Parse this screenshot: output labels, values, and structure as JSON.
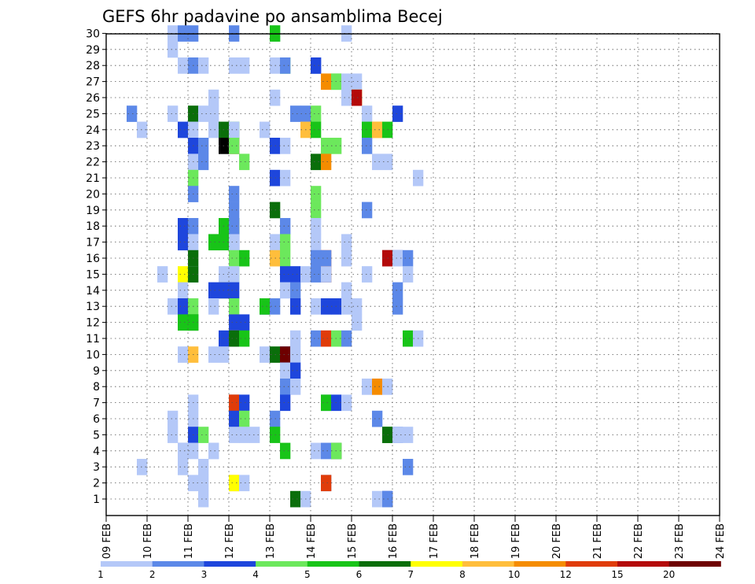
{
  "chart_data": {
    "type": "heatmap",
    "title": "GEFS 6hr padavine po ansamblima Becej",
    "xlabel": "",
    "ylabel": "",
    "y_ticks": [
      1,
      2,
      3,
      4,
      5,
      6,
      7,
      8,
      9,
      10,
      11,
      12,
      13,
      14,
      15,
      16,
      17,
      18,
      19,
      20,
      21,
      22,
      23,
      24,
      25,
      26,
      27,
      28,
      29,
      30
    ],
    "x_ticks": [
      "09 FEB",
      "10 FEB",
      "11 FEB",
      "12 FEB",
      "13 FEB",
      "14 FEB",
      "15 FEB",
      "16 FEB",
      "17 FEB",
      "18 FEB",
      "19 FEB",
      "20 FEB",
      "21 FEB",
      "22 FEB",
      "23 FEB",
      "24 FEB"
    ],
    "x_unit": "6-hour step from 09 FEB 00Z",
    "legend": {
      "labels": [
        "1",
        "2",
        "3",
        "4",
        "5",
        "6",
        "7",
        "8",
        "10",
        "12",
        "15",
        "20"
      ],
      "colors": [
        "#b4c8f8",
        "#5c88e8",
        "#1e46dc",
        "#6ce85c",
        "#18c418",
        "#0a6e0a",
        "#ffff00",
        "#ffbe3c",
        "#f58c00",
        "#e03c0a",
        "#b40a0a",
        "#6e0000"
      ]
    },
    "cells": [
      [
        30,
        6,
        1
      ],
      [
        30,
        7,
        2
      ],
      [
        30,
        8,
        2
      ],
      [
        30,
        12,
        2
      ],
      [
        30,
        16,
        1
      ],
      [
        30,
        16,
        5
      ],
      [
        30,
        23,
        1
      ],
      [
        29,
        6,
        1
      ],
      [
        28,
        7,
        1
      ],
      [
        28,
        8,
        2
      ],
      [
        28,
        9,
        1
      ],
      [
        28,
        12,
        1
      ],
      [
        28,
        13,
        1
      ],
      [
        28,
        16,
        1
      ],
      [
        28,
        17,
        4
      ],
      [
        28,
        17,
        2
      ],
      [
        28,
        20,
        2
      ],
      [
        28,
        20,
        3
      ],
      [
        27,
        21,
        9
      ],
      [
        27,
        22,
        4
      ],
      [
        27,
        22,
        4
      ],
      [
        27,
        23,
        1
      ],
      [
        27,
        24,
        1
      ],
      [
        26,
        10,
        1
      ],
      [
        26,
        16,
        1
      ],
      [
        26,
        23,
        1
      ],
      [
        26,
        24,
        7
      ],
      [
        26,
        24,
        11
      ],
      [
        25,
        2,
        2
      ],
      [
        25,
        6,
        1
      ],
      [
        25,
        8,
        6
      ],
      [
        25,
        9,
        1
      ],
      [
        25,
        10,
        1
      ],
      [
        25,
        18,
        2
      ],
      [
        25,
        19,
        2
      ],
      [
        25,
        20,
        4
      ],
      [
        25,
        25,
        1
      ],
      [
        25,
        28,
        3
      ],
      [
        24,
        3,
        1
      ],
      [
        24,
        7,
        3
      ],
      [
        24,
        8,
        1
      ],
      [
        24,
        10,
        1
      ],
      [
        24,
        11,
        6
      ],
      [
        24,
        12,
        5
      ],
      [
        24,
        12,
        1
      ],
      [
        24,
        15,
        1
      ],
      [
        24,
        19,
        8
      ],
      [
        24,
        20,
        5
      ],
      [
        24,
        25,
        1
      ],
      [
        24,
        25,
        5
      ],
      [
        24,
        26,
        8
      ],
      [
        24,
        26,
        8
      ],
      [
        24,
        27,
        5
      ],
      [
        23,
        8,
        3
      ],
      [
        23,
        9,
        2
      ],
      [
        23,
        11,
        13
      ],
      [
        23,
        12,
        11
      ],
      [
        23,
        12,
        4
      ],
      [
        23,
        16,
        3
      ],
      [
        23,
        17,
        1
      ],
      [
        23,
        21,
        4
      ],
      [
        23,
        22,
        4
      ],
      [
        23,
        25,
        2
      ],
      [
        22,
        8,
        1
      ],
      [
        22,
        9,
        2
      ],
      [
        22,
        13,
        4
      ],
      [
        22,
        20,
        6
      ],
      [
        22,
        21,
        9
      ],
      [
        22,
        26,
        1
      ],
      [
        22,
        27,
        1
      ],
      [
        21,
        8,
        4
      ],
      [
        21,
        16,
        3
      ],
      [
        21,
        17,
        1
      ],
      [
        21,
        30,
        1
      ],
      [
        20,
        8,
        2
      ],
      [
        20,
        12,
        2
      ],
      [
        20,
        20,
        4
      ],
      [
        19,
        12,
        2
      ],
      [
        19,
        16,
        6
      ],
      [
        19,
        20,
        4
      ],
      [
        19,
        25,
        2
      ],
      [
        18,
        7,
        1
      ],
      [
        18,
        7,
        3
      ],
      [
        18,
        8,
        2
      ],
      [
        18,
        11,
        5
      ],
      [
        18,
        12,
        6
      ],
      [
        18,
        12,
        2
      ],
      [
        18,
        17,
        1
      ],
      [
        18,
        17,
        2
      ],
      [
        18,
        20,
        1
      ],
      [
        17,
        7,
        3
      ],
      [
        17,
        8,
        1
      ],
      [
        17,
        10,
        5
      ],
      [
        17,
        11,
        5
      ],
      [
        17,
        12,
        3
      ],
      [
        17,
        12,
        1
      ],
      [
        17,
        16,
        1
      ],
      [
        17,
        17,
        4
      ],
      [
        17,
        20,
        1
      ],
      [
        17,
        23,
        1
      ],
      [
        16,
        8,
        6
      ],
      [
        16,
        12,
        4
      ],
      [
        16,
        13,
        5
      ],
      [
        16,
        16,
        8
      ],
      [
        16,
        17,
        4
      ],
      [
        16,
        20,
        2
      ],
      [
        16,
        21,
        10
      ],
      [
        16,
        21,
        2
      ],
      [
        16,
        23,
        1
      ],
      [
        16,
        27,
        12
      ],
      [
        16,
        27,
        11
      ],
      [
        16,
        28,
        3
      ],
      [
        16,
        28,
        1
      ],
      [
        16,
        29,
        2
      ],
      [
        15,
        5,
        1
      ],
      [
        15,
        7,
        7
      ],
      [
        15,
        8,
        1
      ],
      [
        15,
        8,
        6
      ],
      [
        15,
        11,
        1
      ],
      [
        15,
        12,
        4
      ],
      [
        15,
        12,
        1
      ],
      [
        15,
        17,
        3
      ],
      [
        15,
        18,
        3
      ],
      [
        15,
        19,
        1
      ],
      [
        15,
        20,
        2
      ],
      [
        15,
        21,
        12
      ],
      [
        15,
        21,
        1
      ],
      [
        15,
        25,
        1
      ],
      [
        15,
        29,
        1
      ],
      [
        14,
        7,
        1
      ],
      [
        14,
        10,
        3
      ],
      [
        14,
        11,
        7
      ],
      [
        14,
        11,
        3
      ],
      [
        14,
        12,
        3
      ],
      [
        14,
        17,
        1
      ],
      [
        14,
        18,
        2
      ],
      [
        14,
        23,
        1
      ],
      [
        14,
        28,
        2
      ],
      [
        13,
        6,
        1
      ],
      [
        13,
        7,
        3
      ],
      [
        13,
        8,
        4
      ],
      [
        13,
        10,
        1
      ],
      [
        13,
        12,
        4
      ],
      [
        13,
        15,
        3
      ],
      [
        13,
        15,
        5
      ],
      [
        13,
        16,
        2
      ],
      [
        13,
        18,
        1
      ],
      [
        13,
        18,
        3
      ],
      [
        13,
        20,
        1
      ],
      [
        13,
        21,
        3
      ],
      [
        13,
        22,
        3
      ],
      [
        13,
        23,
        1
      ],
      [
        13,
        24,
        1
      ],
      [
        13,
        28,
        2
      ],
      [
        12,
        7,
        5
      ],
      [
        12,
        8,
        6
      ],
      [
        12,
        8,
        5
      ],
      [
        12,
        12,
        8
      ],
      [
        12,
        12,
        3
      ],
      [
        12,
        13,
        3
      ],
      [
        12,
        24,
        1
      ],
      [
        11,
        11,
        3
      ],
      [
        11,
        12,
        8
      ],
      [
        11,
        12,
        6
      ],
      [
        11,
        13,
        5
      ],
      [
        11,
        18,
        1
      ],
      [
        11,
        20,
        2
      ],
      [
        11,
        21,
        10
      ],
      [
        11,
        22,
        4
      ],
      [
        11,
        23,
        2
      ],
      [
        11,
        29,
        5
      ],
      [
        11,
        30,
        1
      ],
      [
        10,
        7,
        1
      ],
      [
        10,
        8,
        8
      ],
      [
        10,
        10,
        1
      ],
      [
        10,
        11,
        1
      ],
      [
        10,
        15,
        1
      ],
      [
        10,
        16,
        6
      ],
      [
        10,
        17,
        3
      ],
      [
        10,
        17,
        3
      ],
      [
        10,
        17,
        1
      ],
      [
        10,
        17,
        12
      ],
      [
        10,
        18,
        1
      ],
      [
        9,
        17,
        3
      ],
      [
        9,
        17,
        1
      ],
      [
        9,
        18,
        3
      ],
      [
        8,
        17,
        2
      ],
      [
        8,
        18,
        1
      ],
      [
        8,
        25,
        1
      ],
      [
        8,
        26,
        9
      ],
      [
        8,
        27,
        1
      ],
      [
        7,
        8,
        1
      ],
      [
        7,
        12,
        12
      ],
      [
        7,
        12,
        10
      ],
      [
        7,
        13,
        3
      ],
      [
        7,
        17,
        3
      ],
      [
        7,
        21,
        2
      ],
      [
        7,
        21,
        5
      ],
      [
        7,
        22,
        3
      ],
      [
        7,
        23,
        1
      ],
      [
        6,
        6,
        1
      ],
      [
        6,
        8,
        1
      ],
      [
        6,
        12,
        3
      ],
      [
        6,
        13,
        4
      ],
      [
        6,
        16,
        2
      ],
      [
        6,
        26,
        2
      ],
      [
        5,
        6,
        1
      ],
      [
        5,
        8,
        1
      ],
      [
        5,
        8,
        3
      ],
      [
        5,
        9,
        4
      ],
      [
        5,
        12,
        1
      ],
      [
        5,
        13,
        1
      ],
      [
        5,
        14,
        1
      ],
      [
        5,
        16,
        5
      ],
      [
        5,
        27,
        5
      ],
      [
        5,
        27,
        6
      ],
      [
        5,
        28,
        2
      ],
      [
        5,
        28,
        1
      ],
      [
        5,
        29,
        1
      ],
      [
        4,
        7,
        2
      ],
      [
        4,
        7,
        1
      ],
      [
        4,
        8,
        1
      ],
      [
        4,
        10,
        1
      ],
      [
        4,
        10,
        1
      ],
      [
        4,
        17,
        5
      ],
      [
        4,
        20,
        1
      ],
      [
        4,
        21,
        1
      ],
      [
        4,
        21,
        2
      ],
      [
        4,
        22,
        6
      ],
      [
        4,
        22,
        4
      ],
      [
        3,
        3,
        1
      ],
      [
        3,
        7,
        1
      ],
      [
        3,
        9,
        1
      ],
      [
        3,
        29,
        2
      ],
      [
        2,
        8,
        1
      ],
      [
        2,
        9,
        1
      ],
      [
        2,
        12,
        9
      ],
      [
        2,
        12,
        7
      ],
      [
        2,
        13,
        1
      ],
      [
        2,
        21,
        2
      ],
      [
        2,
        21,
        10
      ],
      [
        1,
        9,
        1
      ],
      [
        1,
        18,
        6
      ],
      [
        1,
        19,
        1
      ],
      [
        1,
        26,
        1
      ],
      [
        1,
        27,
        3
      ],
      [
        1,
        27,
        2
      ]
    ]
  }
}
